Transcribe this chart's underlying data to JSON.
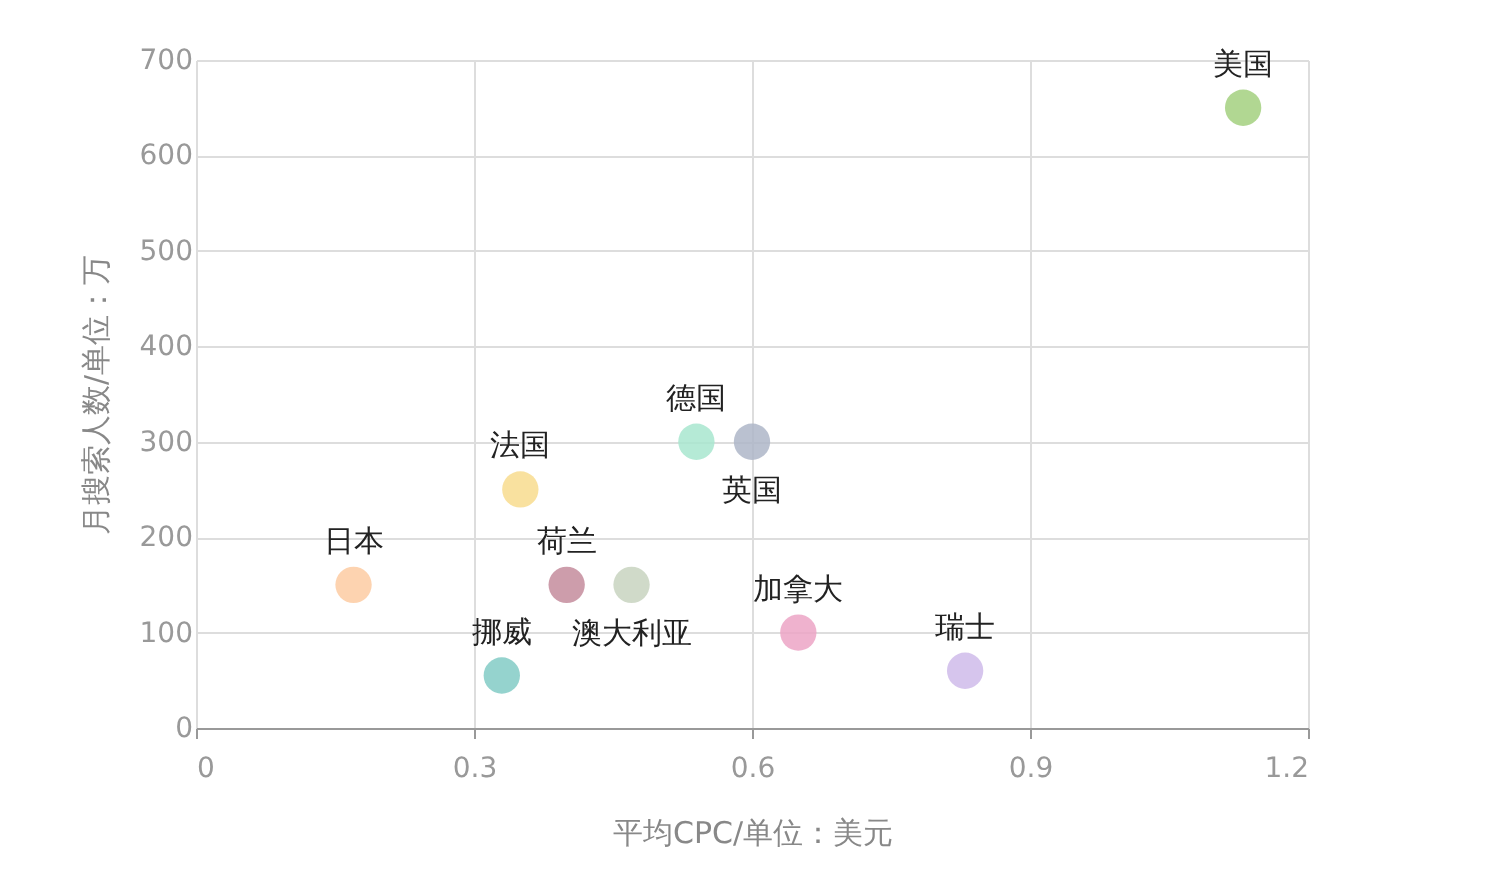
{
  "chart_data": {
    "type": "scatter",
    "xlabel": "平均CPC/单位：美元",
    "ylabel": "月搜索人数/单位：万",
    "xlim": [
      0,
      1.2
    ],
    "xticks": [
      0,
      0.3,
      0.6,
      0.9,
      1.2
    ],
    "ylim": [
      0,
      700
    ],
    "yticks": [
      0,
      100,
      200,
      300,
      400,
      500,
      600,
      700
    ],
    "grid": true,
    "legend": false,
    "marker": "circle",
    "series": [
      {
        "name": "美国",
        "color": "#a3d07f",
        "x": [
          1.13
        ],
        "values": [
          650
        ]
      },
      {
        "name": "德国",
        "color": "#a8e6cf",
        "x": [
          0.54
        ],
        "values": [
          300
        ]
      },
      {
        "name": "英国",
        "color": "#aeb6c8",
        "x": [
          0.6
        ],
        "values": [
          300
        ]
      },
      {
        "name": "法国",
        "color": "#f8dc8e",
        "x": [
          0.35
        ],
        "values": [
          250
        ]
      },
      {
        "name": "日本",
        "color": "#fdcba2",
        "x": [
          0.17
        ],
        "values": [
          150
        ]
      },
      {
        "name": "荷兰",
        "color": "#c48c9c",
        "x": [
          0.4
        ],
        "values": [
          150
        ]
      },
      {
        "name": "澳大利亚",
        "color": "#c8d4c0",
        "x": [
          0.47
        ],
        "values": [
          150
        ]
      },
      {
        "name": "加拿大",
        "color": "#eca5c6",
        "x": [
          0.65
        ],
        "values": [
          100
        ]
      },
      {
        "name": "瑞士",
        "color": "#cfbbea",
        "x": [
          0.83
        ],
        "values": [
          60
        ]
      },
      {
        "name": "挪威",
        "color": "#82cbc6",
        "x": [
          0.33
        ],
        "values": [
          55
        ]
      }
    ]
  }
}
